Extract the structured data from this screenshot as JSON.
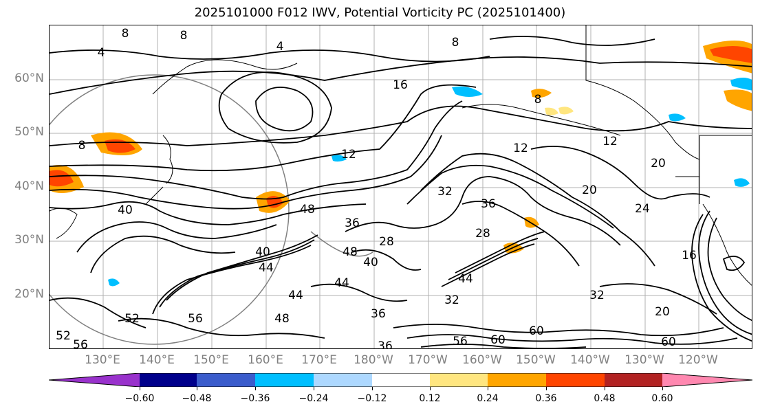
{
  "title": "2025101000 F012 IWV, Potential Vorticity PC (2025101400)",
  "lat_labels": [
    "60°N",
    "50°N",
    "40°N",
    "30°N",
    "20°N"
  ],
  "lon_labels": [
    "130°E",
    "140°E",
    "150°E",
    "160°E",
    "170°E",
    "180°W",
    "170°W",
    "160°W",
    "150°W",
    "140°W",
    "130°W",
    "120°W"
  ],
  "contour_labels": [
    "8",
    "4",
    "8",
    "4",
    "16",
    "8",
    "8",
    "8",
    "12",
    "12",
    "12",
    "20",
    "20",
    "24",
    "40",
    "48",
    "36",
    "32",
    "48",
    "36",
    "28",
    "44",
    "40",
    "44",
    "44",
    "36",
    "48",
    "56",
    "52",
    "56",
    "60",
    "60",
    "32",
    "20",
    "16",
    "44",
    "36",
    "28",
    "32",
    "40",
    "60",
    "56",
    "52"
  ],
  "colorbar": {
    "colors": [
      "#9932cc",
      "#00008b",
      "#3a5ccc",
      "#00bfff",
      "#add8ff",
      "#ffffff",
      "#ffe680",
      "#ffa500",
      "#ff4500",
      "#b22222",
      "#ff88b0"
    ],
    "tick_labels": [
      "−0.60",
      "−0.48",
      "−0.36",
      "−0.24",
      "−0.12",
      "0.12",
      "0.24",
      "0.36",
      "0.48",
      "0.60"
    ]
  },
  "shading_colors": {
    "orange": "#ffa500",
    "red_orange": "#ff4500",
    "yellow": "#ffe680",
    "light_blue": "#00bfff"
  }
}
